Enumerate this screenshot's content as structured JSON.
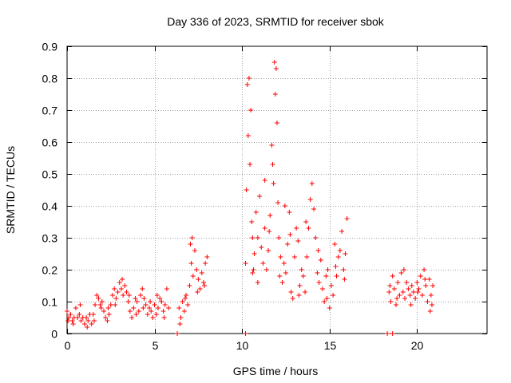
{
  "chart_data": {
    "type": "scatter",
    "title": "Day 336 of 2023, SRMTID for receiver sbok",
    "xlabel": "GPS time / hours",
    "ylabel": "SRMTID / TECUs",
    "xlim": [
      0,
      24
    ],
    "ylim": [
      0,
      0.9
    ],
    "xticks": [
      0,
      5,
      10,
      15,
      20
    ],
    "xtick_labels": [
      "0",
      "5",
      "10",
      "15",
      "20"
    ],
    "yticks": [
      0,
      0.1,
      0.2,
      0.3,
      0.4,
      0.5,
      0.6,
      0.7,
      0.8,
      0.9
    ],
    "ytick_labels": [
      "0",
      "0.1",
      "0.2",
      "0.3",
      "0.4",
      "0.5",
      "0.6",
      "0.7",
      "0.8",
      "0.9"
    ],
    "grid": true,
    "marker": "+",
    "colors": {
      "series": "#ff0000",
      "grid": "#a0a0a0",
      "axes": "#000000"
    },
    "series": [
      {
        "name": "SRMTID",
        "points": [
          [
            0.0,
            0.07
          ],
          [
            0.1,
            0.05
          ],
          [
            0.2,
            0.06
          ],
          [
            0.3,
            0.04
          ],
          [
            0.4,
            0.05
          ],
          [
            0.5,
            0.08
          ],
          [
            0.6,
            0.05
          ],
          [
            0.7,
            0.06
          ],
          [
            0.8,
            0.04
          ],
          [
            0.9,
            0.05
          ],
          [
            1.0,
            0.03
          ],
          [
            1.1,
            0.05
          ],
          [
            1.2,
            0.04
          ],
          [
            1.3,
            0.06
          ],
          [
            1.4,
            0.03
          ],
          [
            1.5,
            0.06
          ],
          [
            1.6,
            0.09
          ],
          [
            1.7,
            0.12
          ],
          [
            1.8,
            0.11
          ],
          [
            1.9,
            0.09
          ],
          [
            2.0,
            0.1
          ],
          [
            2.1,
            0.07
          ],
          [
            2.2,
            0.05
          ],
          [
            2.3,
            0.04
          ],
          [
            2.4,
            0.06
          ],
          [
            2.5,
            0.09
          ],
          [
            2.6,
            0.12
          ],
          [
            2.7,
            0.14
          ],
          [
            2.8,
            0.11
          ],
          [
            2.9,
            0.13
          ],
          [
            3.0,
            0.16
          ],
          [
            3.1,
            0.14
          ],
          [
            3.2,
            0.12
          ],
          [
            3.3,
            0.15
          ],
          [
            3.4,
            0.13
          ],
          [
            3.5,
            0.1
          ],
          [
            3.6,
            0.07
          ],
          [
            3.7,
            0.05
          ],
          [
            3.8,
            0.08
          ],
          [
            3.9,
            0.11
          ],
          [
            4.0,
            0.1
          ],
          [
            4.1,
            0.07
          ],
          [
            4.2,
            0.12
          ],
          [
            4.3,
            0.14
          ],
          [
            4.4,
            0.11
          ],
          [
            4.5,
            0.09
          ],
          [
            4.6,
            0.06
          ],
          [
            4.7,
            0.08
          ],
          [
            4.8,
            0.07
          ],
          [
            4.9,
            0.05
          ],
          [
            5.0,
            0.09
          ],
          [
            5.1,
            0.06
          ],
          [
            5.2,
            0.08
          ],
          [
            5.3,
            0.11
          ],
          [
            5.4,
            0.1
          ],
          [
            5.5,
            0.07
          ],
          [
            5.6,
            0.09
          ],
          [
            5.7,
            0.14
          ],
          [
            0.05,
            0.04
          ],
          [
            0.35,
            0.03
          ],
          [
            0.75,
            0.09
          ],
          [
            1.15,
            0.02
          ],
          [
            1.55,
            0.04
          ],
          [
            1.95,
            0.08
          ],
          [
            2.35,
            0.08
          ],
          [
            2.75,
            0.09
          ],
          [
            3.15,
            0.17
          ],
          [
            3.55,
            0.12
          ],
          [
            3.95,
            0.06
          ],
          [
            4.35,
            0.08
          ],
          [
            4.75,
            0.1
          ],
          [
            5.15,
            0.12
          ],
          [
            5.55,
            0.05
          ],
          [
            5.8,
            0.08
          ],
          [
            6.3,
            0.0
          ],
          [
            6.4,
            0.08
          ],
          [
            6.5,
            0.05
          ],
          [
            6.6,
            0.1
          ],
          [
            6.7,
            0.07
          ],
          [
            6.8,
            0.12
          ],
          [
            6.9,
            0.09
          ],
          [
            7.0,
            0.15
          ],
          [
            7.05,
            0.28
          ],
          [
            7.1,
            0.22
          ],
          [
            7.2,
            0.18
          ],
          [
            7.3,
            0.26
          ],
          [
            7.4,
            0.2
          ],
          [
            7.5,
            0.17
          ],
          [
            7.6,
            0.14
          ],
          [
            7.7,
            0.19
          ],
          [
            7.8,
            0.16
          ],
          [
            7.9,
            0.22
          ],
          [
            8.0,
            0.24
          ],
          [
            6.45,
            0.03
          ],
          [
            6.75,
            0.11
          ],
          [
            7.15,
            0.3
          ],
          [
            7.45,
            0.13
          ],
          [
            7.85,
            0.15
          ],
          [
            10.2,
            0.0
          ],
          [
            10.2,
            0.22
          ],
          [
            10.25,
            0.45
          ],
          [
            10.3,
            0.78
          ],
          [
            10.35,
            0.62
          ],
          [
            10.4,
            0.8
          ],
          [
            10.45,
            0.53
          ],
          [
            10.5,
            0.7
          ],
          [
            10.55,
            0.35
          ],
          [
            10.6,
            0.3
          ],
          [
            10.65,
            0.2
          ],
          [
            10.7,
            0.25
          ],
          [
            10.8,
            0.38
          ],
          [
            10.9,
            0.3
          ],
          [
            11.0,
            0.43
          ],
          [
            11.1,
            0.27
          ],
          [
            11.2,
            0.22
          ],
          [
            11.3,
            0.33
          ],
          [
            11.4,
            0.2
          ],
          [
            11.5,
            0.26
          ],
          [
            11.6,
            0.37
          ],
          [
            11.7,
            0.59
          ],
          [
            11.75,
            0.53
          ],
          [
            11.8,
            0.47
          ],
          [
            11.85,
            0.85
          ],
          [
            11.9,
            0.75
          ],
          [
            11.95,
            0.83
          ],
          [
            12.0,
            0.66
          ],
          [
            12.05,
            0.41
          ],
          [
            12.1,
            0.3
          ],
          [
            12.15,
            0.18
          ],
          [
            12.2,
            0.24
          ],
          [
            12.3,
            0.16
          ],
          [
            12.4,
            0.22
          ],
          [
            12.5,
            0.19
          ],
          [
            12.6,
            0.28
          ],
          [
            12.7,
            0.38
          ],
          [
            12.8,
            0.13
          ],
          [
            12.9,
            0.11
          ],
          [
            13.0,
            0.24
          ],
          [
            13.1,
            0.33
          ],
          [
            13.2,
            0.29
          ],
          [
            13.3,
            0.15
          ],
          [
            13.4,
            0.2
          ],
          [
            13.5,
            0.18
          ],
          [
            13.6,
            0.13
          ],
          [
            13.7,
            0.24
          ],
          [
            13.8,
            0.33
          ],
          [
            13.9,
            0.42
          ],
          [
            14.0,
            0.47
          ],
          [
            14.1,
            0.39
          ],
          [
            14.2,
            0.3
          ],
          [
            14.3,
            0.19
          ],
          [
            14.4,
            0.16
          ],
          [
            14.5,
            0.23
          ],
          [
            14.6,
            0.14
          ],
          [
            14.7,
            0.1
          ],
          [
            14.8,
            0.18
          ],
          [
            14.9,
            0.2
          ],
          [
            15.0,
            0.08
          ],
          [
            15.1,
            0.15
          ],
          [
            15.2,
            0.12
          ],
          [
            15.3,
            0.28
          ],
          [
            15.4,
            0.18
          ],
          [
            15.5,
            0.24
          ],
          [
            15.6,
            0.26
          ],
          [
            15.7,
            0.32
          ],
          [
            15.8,
            0.2
          ],
          [
            15.9,
            0.25
          ],
          [
            16.0,
            0.36
          ],
          [
            10.6,
            0.19
          ],
          [
            10.9,
            0.16
          ],
          [
            11.3,
            0.48
          ],
          [
            11.55,
            0.32
          ],
          [
            12.45,
            0.4
          ],
          [
            12.75,
            0.31
          ],
          [
            13.25,
            0.12
          ],
          [
            13.65,
            0.35
          ],
          [
            14.35,
            0.26
          ],
          [
            14.85,
            0.11
          ],
          [
            15.35,
            0.21
          ],
          [
            15.85,
            0.17
          ],
          [
            18.3,
            0.0
          ],
          [
            18.6,
            0.0
          ],
          [
            18.4,
            0.13
          ],
          [
            18.5,
            0.1
          ],
          [
            18.6,
            0.18
          ],
          [
            18.7,
            0.14
          ],
          [
            18.8,
            0.09
          ],
          [
            18.9,
            0.16
          ],
          [
            19.0,
            0.12
          ],
          [
            19.1,
            0.19
          ],
          [
            19.2,
            0.13
          ],
          [
            19.3,
            0.11
          ],
          [
            19.4,
            0.16
          ],
          [
            19.5,
            0.14
          ],
          [
            19.6,
            0.12
          ],
          [
            19.7,
            0.15
          ],
          [
            19.8,
            0.13
          ],
          [
            19.9,
            0.11
          ],
          [
            20.0,
            0.16
          ],
          [
            20.1,
            0.14
          ],
          [
            20.2,
            0.18
          ],
          [
            20.3,
            0.12
          ],
          [
            20.4,
            0.2
          ],
          [
            20.5,
            0.15
          ],
          [
            20.6,
            0.1
          ],
          [
            20.7,
            0.17
          ],
          [
            20.8,
            0.12
          ],
          [
            20.9,
            0.15
          ],
          [
            18.45,
            0.15
          ],
          [
            18.85,
            0.11
          ],
          [
            19.25,
            0.2
          ],
          [
            19.65,
            0.09
          ],
          [
            20.05,
            0.13
          ],
          [
            20.45,
            0.17
          ],
          [
            20.75,
            0.07
          ],
          [
            20.85,
            0.09
          ]
        ]
      }
    ]
  }
}
